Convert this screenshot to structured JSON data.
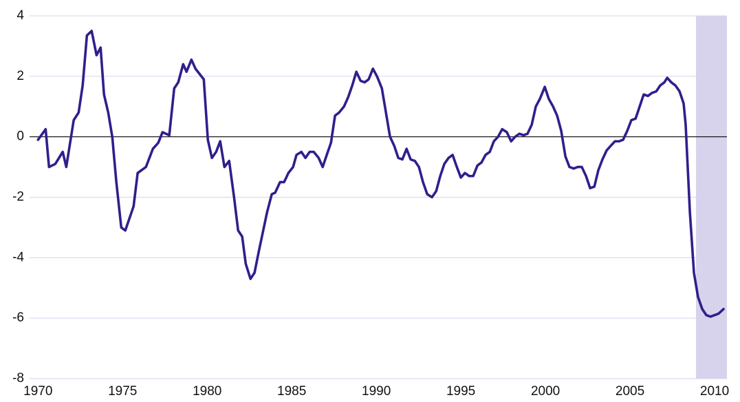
{
  "chart_data": {
    "type": "line",
    "color": "#2f1f8c",
    "shade_color": "#d8d3ec",
    "grid_color": "#d6d3ec",
    "shaded_x": [
      2008.9,
      2010.73
    ],
    "xlim": [
      1969.5,
      2010.73
    ],
    "xticks": [
      1970,
      1975,
      1980,
      1985,
      1990,
      1995,
      2000,
      2005,
      2010
    ],
    "ylim": [
      -8,
      4
    ],
    "yticks": [
      -8,
      -6,
      -4,
      -2,
      0,
      2,
      4
    ],
    "grid": true,
    "x": [
      1970.0,
      1970.45,
      1970.65,
      1971.02,
      1971.46,
      1971.67,
      1972.11,
      1972.4,
      1972.64,
      1972.89,
      1973.17,
      1973.46,
      1973.7,
      1973.9,
      1974.15,
      1974.39,
      1974.63,
      1974.92,
      1975.16,
      1975.65,
      1975.89,
      1976.38,
      1976.79,
      1977.11,
      1977.36,
      1977.76,
      1978.05,
      1978.29,
      1978.58,
      1978.78,
      1979.07,
      1979.31,
      1979.8,
      1980.04,
      1980.28,
      1980.53,
      1980.77,
      1981.02,
      1981.3,
      1981.59,
      1981.83,
      1982.07,
      1982.28,
      1982.56,
      1982.8,
      1983.05,
      1983.54,
      1983.82,
      1984.02,
      1984.31,
      1984.55,
      1984.8,
      1985.08,
      1985.28,
      1985.57,
      1985.81,
      1986.06,
      1986.3,
      1986.59,
      1986.83,
      1987.07,
      1987.32,
      1987.56,
      1987.8,
      1988.09,
      1988.33,
      1988.58,
      1988.82,
      1989.07,
      1989.31,
      1989.55,
      1989.8,
      1990.04,
      1990.33,
      1990.57,
      1990.81,
      1991.06,
      1991.3,
      1991.54,
      1991.79,
      1992.03,
      1992.28,
      1992.52,
      1992.76,
      1993.01,
      1993.29,
      1993.54,
      1993.78,
      1994.02,
      1994.27,
      1994.51,
      1994.76,
      1995.0,
      1995.24,
      1995.49,
      1995.73,
      1995.98,
      1996.22,
      1996.46,
      1996.71,
      1996.95,
      1997.2,
      1997.44,
      1997.72,
      1997.97,
      1998.21,
      1998.46,
      1998.7,
      1998.94,
      1999.19,
      1999.43,
      1999.67,
      1999.96,
      2000.2,
      2000.45,
      2000.69,
      2000.93,
      2001.18,
      2001.42,
      2001.67,
      2001.91,
      2002.15,
      2002.4,
      2002.64,
      2002.89,
      2003.13,
      2003.37,
      2003.62,
      2003.86,
      2004.11,
      2004.35,
      2004.59,
      2004.84,
      2005.08,
      2005.33,
      2005.57,
      2005.81,
      2006.06,
      2006.3,
      2006.55,
      2006.79,
      2007.03,
      2007.2,
      2007.44,
      2007.68,
      2007.93,
      2008.17,
      2008.29,
      2008.54,
      2008.78,
      2009.02,
      2009.27,
      2009.51,
      2009.76,
      2010.0,
      2010.24,
      2010.53
    ],
    "values": [
      -0.1,
      0.25,
      -1.0,
      -0.9,
      -0.5,
      -1.0,
      0.55,
      0.8,
      1.7,
      3.35,
      3.5,
      2.7,
      2.95,
      1.4,
      0.8,
      0.0,
      -1.5,
      -3.0,
      -3.1,
      -2.3,
      -1.2,
      -1.0,
      -0.4,
      -0.2,
      0.15,
      0.05,
      1.6,
      1.8,
      2.4,
      2.15,
      2.55,
      2.25,
      1.9,
      -0.1,
      -0.7,
      -0.5,
      -0.15,
      -1.0,
      -0.8,
      -2.0,
      -3.1,
      -3.3,
      -4.2,
      -4.7,
      -4.5,
      -3.8,
      -2.5,
      -1.9,
      -1.85,
      -1.5,
      -1.5,
      -1.2,
      -1.0,
      -0.6,
      -0.5,
      -0.7,
      -0.5,
      -0.5,
      -0.7,
      -1.0,
      -0.6,
      -0.2,
      0.7,
      0.8,
      1.0,
      1.3,
      1.7,
      2.15,
      1.85,
      1.8,
      1.9,
      2.25,
      2.0,
      1.6,
      0.8,
      0.0,
      -0.3,
      -0.7,
      -0.75,
      -0.4,
      -0.75,
      -0.8,
      -1.0,
      -1.5,
      -1.9,
      -2.0,
      -1.8,
      -1.3,
      -0.9,
      -0.7,
      -0.6,
      -1.0,
      -1.35,
      -1.2,
      -1.3,
      -1.3,
      -0.95,
      -0.85,
      -0.6,
      -0.5,
      -0.15,
      0.0,
      0.25,
      0.15,
      -0.15,
      0.0,
      0.1,
      0.05,
      0.1,
      0.4,
      1.0,
      1.25,
      1.65,
      1.25,
      1.0,
      0.7,
      0.2,
      -0.65,
      -1.0,
      -1.05,
      -1.0,
      -1.0,
      -1.3,
      -1.7,
      -1.65,
      -1.1,
      -0.75,
      -0.45,
      -0.3,
      -0.15,
      -0.15,
      -0.1,
      0.2,
      0.55,
      0.6,
      1.0,
      1.4,
      1.35,
      1.45,
      1.5,
      1.7,
      1.8,
      1.95,
      1.8,
      1.7,
      1.5,
      1.1,
      0.4,
      -2.5,
      -4.5,
      -5.3,
      -5.7,
      -5.9,
      -5.95,
      -5.9,
      -5.85,
      -5.7
    ]
  }
}
